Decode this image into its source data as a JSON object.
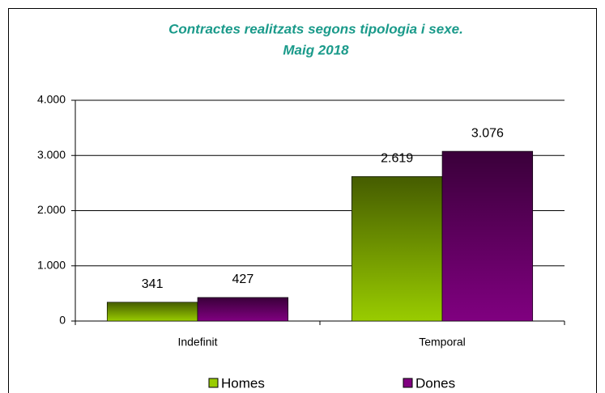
{
  "chart_data": {
    "type": "bar",
    "title": "Contractes realitzats segons tipologia i sexe.",
    "subtitle": "Maig 2018",
    "categories": [
      "Indefinit",
      "Temporal"
    ],
    "series": [
      {
        "name": "Homes",
        "color": "#99cc00",
        "values": [
          341,
          2619
        ],
        "value_labels": [
          "341",
          "2.619"
        ]
      },
      {
        "name": "Dones",
        "color": "#800080",
        "values": [
          427,
          3076
        ],
        "value_labels": [
          "427",
          "3.076"
        ]
      }
    ],
    "ylim": [
      0,
      4000
    ],
    "yticks": [
      0,
      {
        "value": 1000,
        "label": "1.000"
      },
      {
        "value": 2000,
        "label": "2.000"
      },
      {
        "value": 3000,
        "label": "3.000"
      },
      {
        "value": 4000,
        "label": "4.000"
      }
    ],
    "grid": true,
    "legend": "bottom"
  }
}
